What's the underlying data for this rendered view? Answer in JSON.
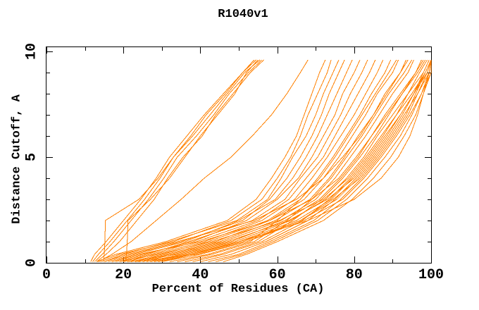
{
  "title": "R1040v1",
  "chart_data": {
    "type": "line",
    "title": "R1040v1",
    "xlabel": "Percent of Residues (CA)",
    "ylabel": "Distance Cutoff, A",
    "xlim": [
      0,
      100
    ],
    "ylim": [
      0,
      10
    ],
    "x_major_ticks": [
      0,
      20,
      40,
      60,
      80,
      100
    ],
    "x_minor_step": 10,
    "y_major_ticks": [
      0,
      5,
      10
    ],
    "y_minor_step": 1,
    "grid": "off",
    "legend": "none",
    "line_color": "#ff8000",
    "axis_color": "#000000",
    "background": "#ffffff",
    "y_grid": [
      0.05,
      0.4,
      1,
      2,
      3,
      4,
      5,
      6,
      7,
      8,
      9,
      9.6
    ],
    "series_x_at_y": [
      [
        11.5,
        12.5,
        15.5,
        20,
        24.5,
        28.5,
        32,
        36.5,
        41,
        46,
        51,
        54.5
      ],
      [
        12,
        13.5,
        16.5,
        21,
        25.5,
        29.5,
        33,
        38,
        42.5,
        47,
        51.5,
        55.5
      ],
      [
        12.5,
        14.5,
        17.5,
        22,
        26.5,
        30.5,
        34,
        39,
        43.5,
        47.5,
        52.5,
        56
      ],
      [
        13,
        15.5,
        19,
        23.5,
        28,
        31.5,
        35.5,
        40.5,
        44,
        48.5,
        53,
        56.5
      ],
      [
        14.8,
        15,
        15.2,
        15.3,
        24,
        29,
        33,
        37.5,
        41.5,
        46.5,
        51,
        54
      ],
      [
        20.5,
        20.8,
        21,
        21.2,
        27,
        32,
        36,
        40,
        44.5,
        49,
        52,
        55
      ],
      [
        13.5,
        17,
        22,
        28.5,
        35,
        41,
        48,
        53.5,
        58.5,
        62.5,
        66,
        68
      ],
      [
        13,
        18,
        31,
        47,
        54.5,
        58.5,
        62,
        65,
        67,
        69,
        71,
        72.5
      ],
      [
        14,
        19,
        33,
        48,
        56,
        60,
        63.5,
        66,
        68,
        70.5,
        73,
        74
      ],
      [
        15,
        20,
        32,
        49.5,
        57.5,
        61,
        64,
        67.5,
        70,
        72,
        74.5,
        76
      ],
      [
        16,
        22,
        35,
        51,
        58,
        62.5,
        66,
        69,
        71.5,
        73.5,
        76,
        77.5
      ],
      [
        17,
        23,
        36,
        50,
        59.5,
        64,
        67.5,
        70.5,
        73,
        75.5,
        78,
        79.5
      ],
      [
        18,
        25,
        38,
        52,
        60,
        65.5,
        69,
        72,
        75,
        77,
        80,
        81.5
      ],
      [
        19,
        26,
        37,
        53.5,
        62,
        66,
        70.5,
        73.5,
        76.5,
        79,
        82,
        83.5
      ],
      [
        20,
        27,
        39,
        55,
        63,
        67.5,
        72,
        75,
        78,
        81,
        84,
        85.5
      ],
      [
        21,
        28,
        41,
        56,
        64.5,
        69,
        73,
        76.5,
        80,
        83,
        86,
        87.5
      ],
      [
        22,
        30,
        42,
        57.5,
        66,
        70.5,
        74.5,
        78,
        81.5,
        84.5,
        88,
        89.5
      ],
      [
        23,
        31,
        44,
        58,
        67,
        72,
        76,
        79.5,
        83,
        86,
        90,
        91.5
      ],
      [
        24,
        32,
        45,
        59.5,
        68.5,
        73.5,
        77.5,
        81,
        85,
        88,
        92,
        93.5
      ],
      [
        25,
        33,
        46,
        61,
        70,
        75,
        79,
        83,
        86.5,
        90,
        94,
        95.5
      ],
      [
        26,
        35,
        48,
        62,
        71,
        76.5,
        81,
        84.5,
        88,
        92,
        96,
        97.5
      ],
      [
        27,
        36,
        49,
        63.5,
        72.5,
        78,
        82.5,
        86,
        90,
        94,
        98,
        99.5
      ],
      [
        28,
        37,
        50,
        65,
        74,
        79.5,
        84,
        88,
        92,
        95.5,
        99,
        100
      ],
      [
        29,
        38,
        51,
        66,
        75.5,
        81,
        85.5,
        89.5,
        93,
        96.5,
        99.5,
        100
      ],
      [
        30,
        40,
        52,
        67,
        77,
        82.5,
        87,
        91,
        94.5,
        97.5,
        100,
        100
      ],
      [
        32,
        42,
        53,
        60,
        66,
        71,
        75,
        78.5,
        82,
        85.5,
        89,
        91
      ],
      [
        34,
        43,
        54,
        62.5,
        69,
        74,
        78,
        82,
        85.5,
        89,
        93,
        95
      ],
      [
        36,
        45,
        55,
        64,
        71.5,
        77,
        81.5,
        85.5,
        89,
        92.5,
        96,
        98
      ],
      [
        38,
        46,
        56,
        66.5,
        73.5,
        79,
        83.5,
        87.5,
        91,
        94,
        97,
        99
      ],
      [
        40,
        48,
        57,
        68,
        75,
        80.5,
        85,
        89,
        92.5,
        95.5,
        98.5,
        100
      ],
      [
        42,
        50,
        58,
        69.5,
        76.5,
        82,
        86.5,
        90.5,
        94,
        96.5,
        99,
        100
      ],
      [
        44,
        51,
        59,
        70.5,
        78,
        83.5,
        88,
        92,
        95,
        97.5,
        99.5,
        100
      ],
      [
        46,
        52,
        60,
        72,
        79.5,
        85,
        89.5,
        93,
        96,
        98,
        100,
        100
      ],
      [
        15,
        21,
        34,
        54,
        65,
        72,
        77,
        81.5,
        85,
        88.5,
        92,
        94
      ],
      [
        17,
        24,
        40,
        58,
        69,
        76,
        80.5,
        84.5,
        88.5,
        92.5,
        96.5,
        98.5
      ],
      [
        19,
        29,
        43,
        60.5,
        72,
        78.5,
        83,
        87,
        91,
        95,
        98.5,
        100
      ],
      [
        21,
        34,
        47,
        63,
        73,
        80,
        84.5,
        88.5,
        92,
        95.5,
        98,
        99.5
      ],
      [
        23,
        39,
        52,
        66,
        74.5,
        81.5,
        86,
        90,
        93.5,
        96,
        98.5,
        100
      ],
      [
        30,
        38,
        50,
        68,
        80,
        87,
        91.5,
        94.5,
        96.5,
        98,
        99.5,
        100
      ]
    ]
  }
}
